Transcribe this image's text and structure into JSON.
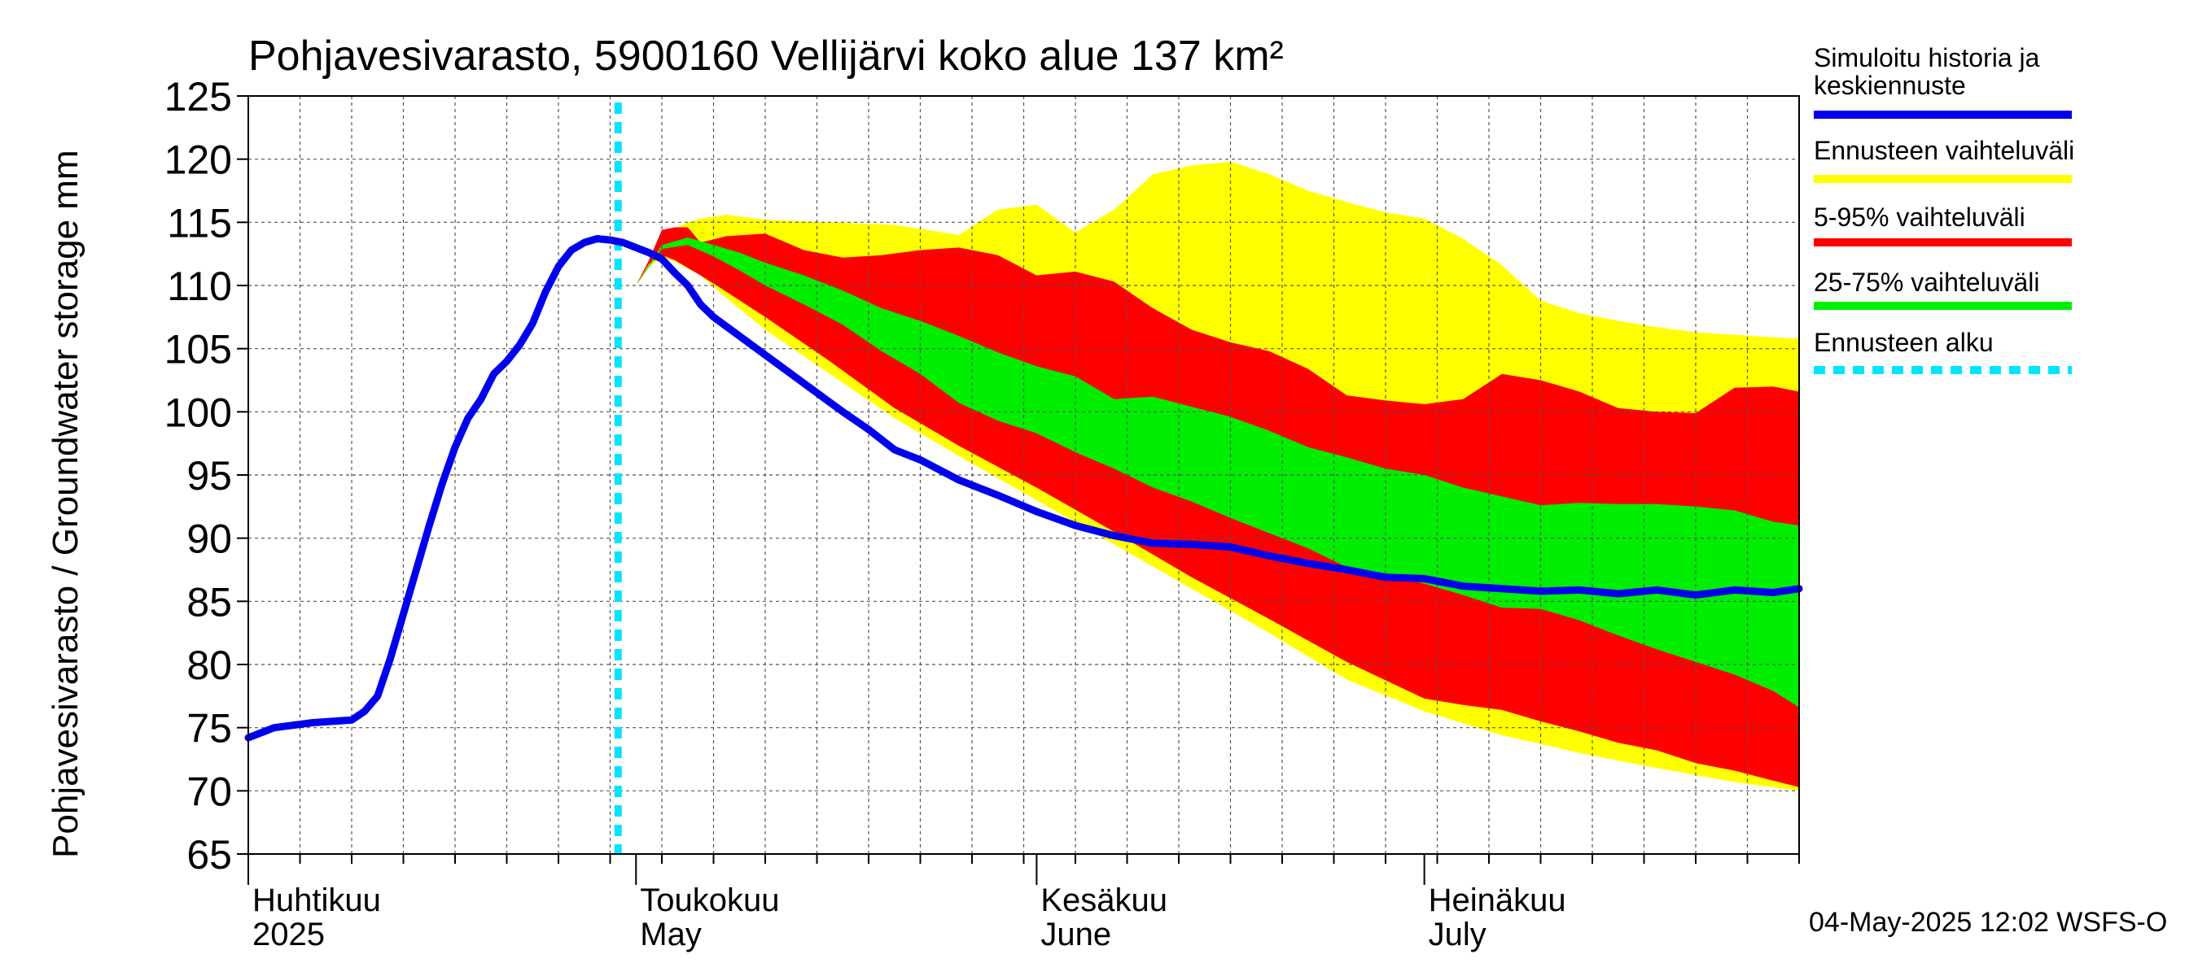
{
  "chart_data": {
    "type": "area",
    "title": "Pohjavesivarasto, 5900160 Vellijärvi koko alue 137 km²",
    "ylabel": "Pohjavesivarasto / Groundwater storage   mm",
    "ylim": [
      65,
      125
    ],
    "y_ticks": [
      "65",
      "70",
      "75",
      "80",
      "85",
      "90",
      "95",
      "100",
      "105",
      "110",
      "115",
      "120",
      "125"
    ],
    "x_range_days": [
      0,
      120
    ],
    "month_labels": [
      {
        "line1": "Huhtikuu",
        "line2": "2025",
        "day": 0
      },
      {
        "line1": "Toukokuu",
        "line2": "May",
        "day": 30
      },
      {
        "line1": "Kesäkuu",
        "line2": "June",
        "day": 61
      },
      {
        "line1": "Heinäkuu",
        "line2": "July",
        "day": 91
      }
    ],
    "forecast_start_day": 30,
    "legend": [
      {
        "label": "Simuloitu historia ja",
        "label2": "keskiennuste",
        "color": "#0000ee",
        "style": "solid"
      },
      {
        "label": "Ennusteen vaihteluväli",
        "color": "#ffff00",
        "style": "solid"
      },
      {
        "label": "5-95% vaihteluväli",
        "color": "#ff0000",
        "style": "solid"
      },
      {
        "label": "25-75% vaihteluväli",
        "color": "#00ee00",
        "style": "solid"
      },
      {
        "label": "Ennusteen alku",
        "color": "#00e5ff",
        "style": "dashed"
      }
    ],
    "series": [
      {
        "name": "Simuloitu historia ja keskiennuste",
        "color": "#0000ee",
        "x": [
          -1,
          2,
          5,
          8,
          9,
          10,
          11,
          12,
          13,
          14,
          15,
          16,
          17,
          18,
          19,
          20,
          21,
          22,
          23,
          24,
          25,
          26,
          27,
          28,
          29,
          30,
          31,
          32,
          33,
          34,
          35,
          36,
          38,
          40,
          42,
          44,
          46,
          48,
          50,
          52,
          55,
          58,
          61,
          64,
          67,
          70,
          73,
          76,
          79,
          82,
          85,
          88,
          91,
          94,
          97,
          100,
          103,
          106,
          109,
          112,
          115,
          118,
          120
        ],
        "y": [
          74.2,
          75,
          75.4,
          75.6,
          76.3,
          77.5,
          80.5,
          84,
          87.5,
          91,
          94.3,
          97.2,
          99.5,
          101,
          103,
          104,
          105.3,
          107,
          109.5,
          111.5,
          112.8,
          113.4,
          113.7,
          113.6,
          113.4,
          113,
          112.6,
          112.1,
          111,
          110,
          108.5,
          107.5,
          106,
          104.5,
          103,
          101.5,
          100,
          98.6,
          97,
          96.2,
          94.6,
          93.4,
          92.1,
          91,
          90.2,
          89.6,
          89.5,
          89.3,
          88.6,
          88,
          87.5,
          86.9,
          86.8,
          86.2,
          86,
          85.8,
          85.9,
          85.6,
          85.9,
          85.5,
          85.9,
          85.7,
          86
        ],
        "_note": "x offset so that forecast begins at day 30"
      },
      {
        "name": "Ennusteen vaihteluväli (max)",
        "color": "#ffff00",
        "x": [
          30,
          31,
          32,
          33,
          34,
          35,
          37,
          40,
          45,
          50,
          55,
          58,
          61,
          64,
          67,
          70,
          73,
          76,
          79,
          82,
          85,
          88,
          91,
          94,
          97,
          100,
          103,
          106,
          109,
          112,
          115,
          118,
          120
        ],
        "y": [
          110,
          112,
          113.5,
          114.5,
          115,
          115.3,
          115.6,
          115.2,
          115,
          114.8,
          114,
          116,
          116.4,
          114.2,
          116,
          118.8,
          119.5,
          119.8,
          118.8,
          117.5,
          116.6,
          115.8,
          115.3,
          113.7,
          111.6,
          108.8,
          107.8,
          107.2,
          106.7,
          106.3,
          106.1,
          105.9,
          105.8
        ]
      },
      {
        "name": "Ennusteen vaihteluväli (min)",
        "color": "#ffff00",
        "x": [
          30,
          31,
          32,
          33,
          35,
          37,
          40,
          45,
          50,
          55,
          61,
          67,
          73,
          79,
          85,
          91,
          97,
          103,
          109,
          115,
          120
        ],
        "y": [
          110,
          111.5,
          112.2,
          111.9,
          110.8,
          109,
          106.5,
          103,
          99.5,
          96.5,
          93,
          89.5,
          86,
          82.5,
          78.8,
          76.3,
          74.4,
          73,
          71.8,
          70.7,
          70
        ]
      },
      {
        "name": "5-95% vaihteluväli (upper)",
        "color": "#ff0000",
        "x": [
          30,
          31,
          32,
          33,
          34,
          35,
          37,
          40,
          43,
          46,
          49,
          52,
          55,
          58,
          61,
          64,
          67,
          70,
          73,
          76,
          79,
          82,
          85,
          88,
          91,
          94,
          97,
          100,
          103,
          106,
          109,
          112,
          115,
          118,
          120
        ],
        "y": [
          110,
          112,
          114.4,
          114.6,
          114.6,
          113.4,
          113.9,
          114.1,
          112.8,
          112.2,
          112.4,
          112.8,
          113,
          112.4,
          110.8,
          111.1,
          110.3,
          108.2,
          106.5,
          105.5,
          104.8,
          103.4,
          101.3,
          100.9,
          100.6,
          101,
          103,
          102.5,
          101.6,
          100.3,
          100,
          99.9,
          101.9,
          102,
          101.6
        ]
      },
      {
        "name": "5-95% vaihteluväli (lower)",
        "color": "#ff0000",
        "x": [
          30,
          31,
          32,
          33,
          35,
          37,
          40,
          45,
          50,
          55,
          61,
          67,
          73,
          79,
          85,
          91,
          94,
          97,
          100,
          103,
          106,
          109,
          112,
          115,
          118,
          120
        ],
        "y": [
          110,
          111.7,
          112.4,
          112,
          110.8,
          109.5,
          107.5,
          104,
          100.3,
          97.3,
          94,
          90.5,
          86.9,
          83.6,
          80.2,
          77.3,
          76.8,
          76.4,
          75.5,
          74.7,
          73.8,
          73.2,
          72.2,
          71.6,
          70.8,
          70.3
        ]
      },
      {
        "name": "25-75% vaihteluväli (upper)",
        "color": "#00ee00",
        "x": [
          30,
          32,
          34,
          36,
          38,
          40,
          43,
          46,
          49,
          52,
          55,
          58,
          61,
          64,
          67,
          70,
          73,
          76,
          79,
          82,
          85,
          88,
          91,
          94,
          97,
          100,
          103,
          106,
          109,
          112,
          115,
          118,
          120
        ],
        "y": [
          110,
          113.2,
          113.8,
          113.2,
          112.6,
          111.8,
          110.8,
          109.6,
          108.2,
          107.2,
          106,
          104.7,
          103.6,
          102.8,
          101,
          101.2,
          100.4,
          99.6,
          98.5,
          97.2,
          96.4,
          95.5,
          95,
          94,
          93.3,
          92.6,
          92.8,
          92.7,
          92.7,
          92.5,
          92.2,
          91.3,
          91
        ]
      },
      {
        "name": "25-75% vaihteluväli (lower)",
        "color": "#00ee00",
        "x": [
          30,
          32,
          34,
          36,
          38,
          40,
          43,
          46,
          49,
          52,
          55,
          58,
          61,
          64,
          67,
          70,
          73,
          76,
          79,
          82,
          85,
          88,
          91,
          94,
          97,
          100,
          103,
          106,
          109,
          112,
          115,
          118,
          120
        ],
        "y": [
          110,
          112.9,
          113.2,
          112.3,
          111.2,
          110,
          108.5,
          106.9,
          104.8,
          103,
          100.7,
          99.3,
          98.3,
          96.8,
          95.5,
          94,
          92.9,
          91.6,
          90.4,
          89.2,
          87.7,
          87.2,
          86.4,
          85.5,
          84.5,
          84.4,
          83.5,
          82.3,
          81.2,
          80.2,
          79.2,
          77.9,
          76.6
        ]
      }
    ]
  },
  "footer": {
    "timestamp": "04-May-2025 12:02 WSFS-O"
  }
}
